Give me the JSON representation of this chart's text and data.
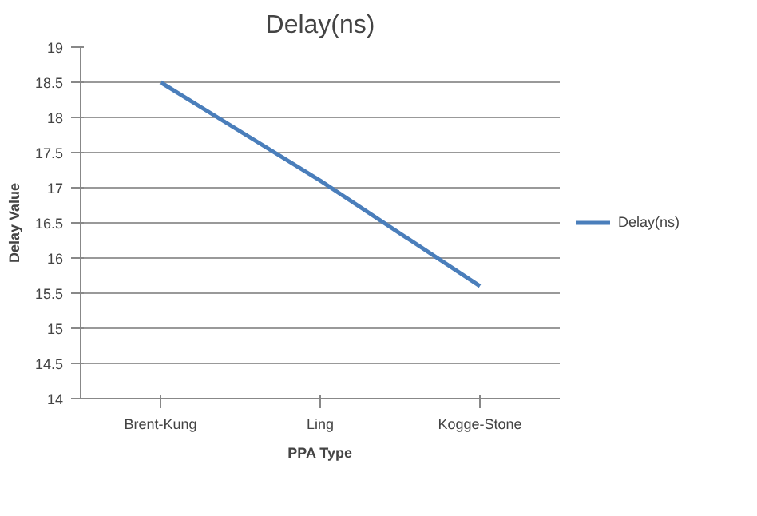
{
  "chart_data": {
    "type": "line",
    "title": "Delay(ns)",
    "xlabel": "PPA Type",
    "ylabel": "Delay Value",
    "categories": [
      "Brent-Kung",
      "Ling",
      "Kogge-Stone"
    ],
    "series": [
      {
        "name": "Delay(ns)",
        "color": "#4a7ebb",
        "values": [
          18.5,
          17.1,
          15.6
        ]
      }
    ],
    "ylim": [
      14,
      19
    ],
    "yticks": [
      14,
      14.5,
      15,
      15.5,
      16,
      16.5,
      17,
      17.5,
      18,
      18.5,
      19
    ],
    "grid": "y",
    "legend": "right",
    "marker": "none",
    "line_style": "solid"
  }
}
